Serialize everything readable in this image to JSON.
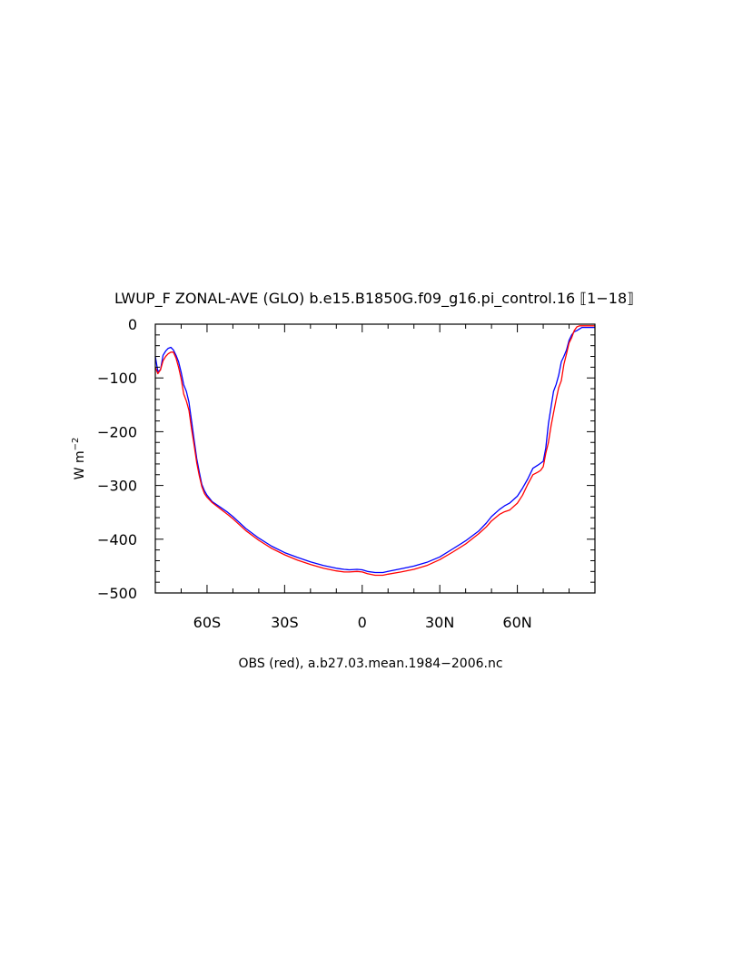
{
  "chart_data": {
    "type": "line",
    "title": "LWUP_F ZONAL-AVE (GLO) b.e15.B1850G.f09_g16.pi_control.16 ⟦1−18⟧",
    "ylabel": "W m",
    "ylabel_exponent": "−2",
    "caption": "OBS (red), a.b27.03.mean.1984−2006.nc",
    "xlim": [
      -80,
      90
    ],
    "ylim": [
      -500,
      0
    ],
    "x_ticks": [
      {
        "value": -60,
        "label": "60S"
      },
      {
        "value": -30,
        "label": "30S"
      },
      {
        "value": 0,
        "label": "0"
      },
      {
        "value": 30,
        "label": "30N"
      },
      {
        "value": 60,
        "label": "60N"
      }
    ],
    "y_ticks": [
      {
        "value": 0,
        "label": "0"
      },
      {
        "value": -100,
        "label": "−100"
      },
      {
        "value": -200,
        "label": "−200"
      },
      {
        "value": -300,
        "label": "−300"
      },
      {
        "value": -400,
        "label": "−400"
      },
      {
        "value": -500,
        "label": "−500"
      }
    ],
    "grid": false,
    "series": [
      {
        "color": "#0000ff",
        "points": [
          [
            -80,
            -60
          ],
          [
            -79,
            -88
          ],
          [
            -78,
            -85
          ],
          [
            -77,
            -58
          ],
          [
            -76,
            -50
          ],
          [
            -75,
            -45
          ],
          [
            -74,
            -43
          ],
          [
            -73,
            -48
          ],
          [
            -72,
            -58
          ],
          [
            -71,
            -70
          ],
          [
            -70,
            -90
          ],
          [
            -69,
            -113
          ],
          [
            -68,
            -125
          ],
          [
            -67,
            -145
          ],
          [
            -66,
            -180
          ],
          [
            -65,
            -215
          ],
          [
            -64,
            -250
          ],
          [
            -63,
            -275
          ],
          [
            -62,
            -298
          ],
          [
            -61,
            -310
          ],
          [
            -60,
            -318
          ],
          [
            -58,
            -330
          ],
          [
            -55,
            -340
          ],
          [
            -52,
            -350
          ],
          [
            -50,
            -358
          ],
          [
            -45,
            -380
          ],
          [
            -40,
            -398
          ],
          [
            -35,
            -413
          ],
          [
            -30,
            -425
          ],
          [
            -25,
            -434
          ],
          [
            -20,
            -442
          ],
          [
            -15,
            -449
          ],
          [
            -10,
            -454
          ],
          [
            -7,
            -456
          ],
          [
            -5,
            -457
          ],
          [
            -2,
            -456
          ],
          [
            0,
            -457
          ],
          [
            2,
            -460
          ],
          [
            5,
            -462
          ],
          [
            8,
            -462
          ],
          [
            10,
            -460
          ],
          [
            15,
            -455
          ],
          [
            20,
            -450
          ],
          [
            25,
            -443
          ],
          [
            30,
            -433
          ],
          [
            35,
            -418
          ],
          [
            40,
            -403
          ],
          [
            45,
            -385
          ],
          [
            48,
            -370
          ],
          [
            50,
            -358
          ],
          [
            53,
            -345
          ],
          [
            55,
            -338
          ],
          [
            57,
            -333
          ],
          [
            60,
            -320
          ],
          [
            62,
            -305
          ],
          [
            64,
            -288
          ],
          [
            66,
            -268
          ],
          [
            68,
            -262
          ],
          [
            70,
            -255
          ],
          [
            71,
            -230
          ],
          [
            72,
            -185
          ],
          [
            73,
            -155
          ],
          [
            74,
            -125
          ],
          [
            75,
            -112
          ],
          [
            76,
            -95
          ],
          [
            77,
            -70
          ],
          [
            78,
            -60
          ],
          [
            79,
            -48
          ],
          [
            80,
            -30
          ],
          [
            81,
            -20
          ],
          [
            82,
            -14
          ],
          [
            83,
            -12
          ],
          [
            84,
            -9
          ],
          [
            85,
            -6
          ],
          [
            87,
            -6
          ],
          [
            89,
            -6
          ],
          [
            90,
            -6
          ]
        ]
      },
      {
        "color": "#ff0000",
        "points": [
          [
            -80,
            -80
          ],
          [
            -79,
            -92
          ],
          [
            -78,
            -85
          ],
          [
            -77,
            -68
          ],
          [
            -76,
            -60
          ],
          [
            -75,
            -55
          ],
          [
            -74,
            -52
          ],
          [
            -73,
            -52
          ],
          [
            -72,
            -63
          ],
          [
            -71,
            -80
          ],
          [
            -70,
            -102
          ],
          [
            -69,
            -130
          ],
          [
            -68,
            -143
          ],
          [
            -67,
            -160
          ],
          [
            -66,
            -195
          ],
          [
            -65,
            -225
          ],
          [
            -64,
            -258
          ],
          [
            -63,
            -282
          ],
          [
            -62,
            -302
          ],
          [
            -61,
            -315
          ],
          [
            -60,
            -322
          ],
          [
            -58,
            -332
          ],
          [
            -55,
            -343
          ],
          [
            -52,
            -354
          ],
          [
            -50,
            -362
          ],
          [
            -45,
            -384
          ],
          [
            -40,
            -402
          ],
          [
            -35,
            -417
          ],
          [
            -30,
            -429
          ],
          [
            -25,
            -439
          ],
          [
            -20,
            -447
          ],
          [
            -15,
            -454
          ],
          [
            -10,
            -459
          ],
          [
            -7,
            -461
          ],
          [
            -5,
            -461
          ],
          [
            -2,
            -460
          ],
          [
            0,
            -461
          ],
          [
            2,
            -464
          ],
          [
            5,
            -467
          ],
          [
            8,
            -467
          ],
          [
            10,
            -465
          ],
          [
            15,
            -461
          ],
          [
            20,
            -456
          ],
          [
            25,
            -449
          ],
          [
            30,
            -438
          ],
          [
            35,
            -424
          ],
          [
            40,
            -409
          ],
          [
            45,
            -390
          ],
          [
            48,
            -377
          ],
          [
            50,
            -366
          ],
          [
            53,
            -354
          ],
          [
            55,
            -349
          ],
          [
            57,
            -346
          ],
          [
            60,
            -333
          ],
          [
            62,
            -318
          ],
          [
            64,
            -298
          ],
          [
            66,
            -280
          ],
          [
            68,
            -275
          ],
          [
            69,
            -272
          ],
          [
            70,
            -265
          ],
          [
            71,
            -240
          ],
          [
            72,
            -220
          ],
          [
            73,
            -190
          ],
          [
            74,
            -165
          ],
          [
            75,
            -140
          ],
          [
            76,
            -118
          ],
          [
            77,
            -105
          ],
          [
            78,
            -75
          ],
          [
            79,
            -55
          ],
          [
            80,
            -35
          ],
          [
            81,
            -25
          ],
          [
            82,
            -12
          ],
          [
            83,
            -5
          ],
          [
            84,
            -3
          ],
          [
            86,
            -3
          ],
          [
            88,
            -3
          ],
          [
            90,
            -3
          ]
        ]
      }
    ]
  }
}
